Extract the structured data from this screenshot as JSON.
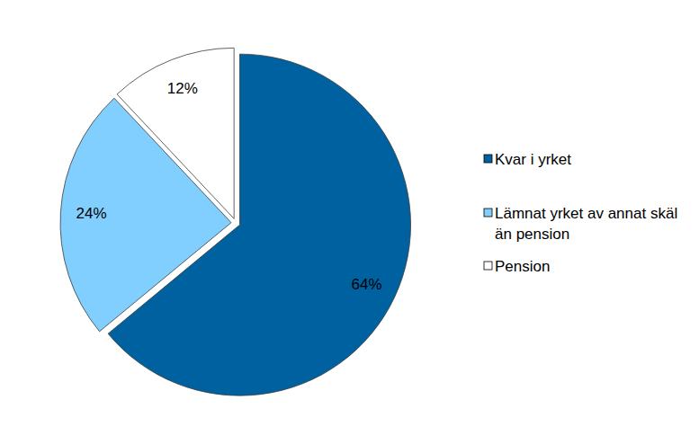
{
  "chart_data": {
    "type": "pie",
    "categories": [
      "Kvar i yrket",
      "Lämnat yrket av annat skäl än pension",
      "Pension"
    ],
    "values": [
      64,
      24,
      12
    ],
    "value_labels": [
      "64%",
      "24%",
      "12%"
    ],
    "colors": [
      "#0061a1",
      "#80cfff",
      "#ffffff"
    ],
    "data_labels": true,
    "legend": "right"
  }
}
